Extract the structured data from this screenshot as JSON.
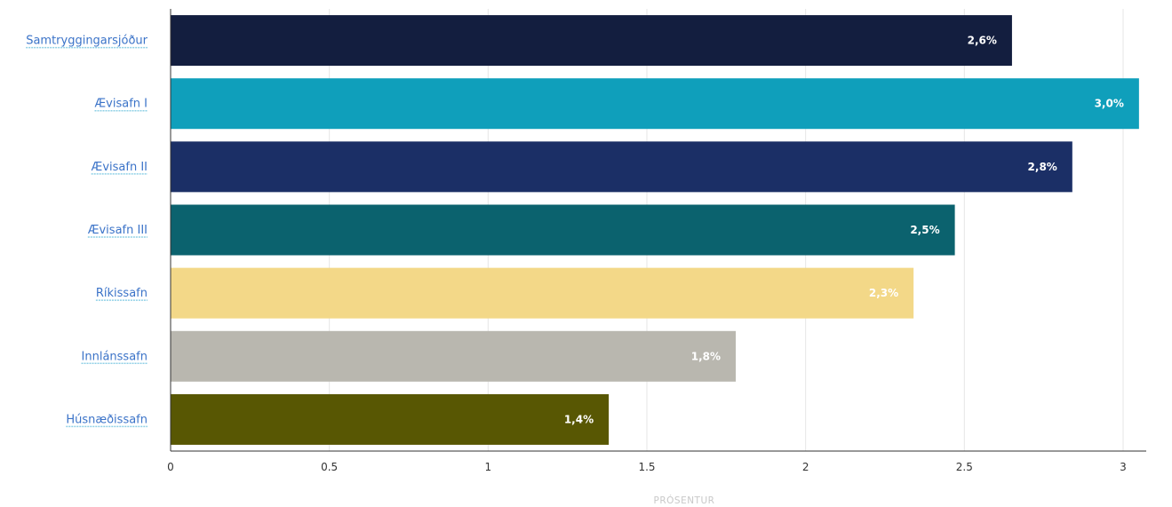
{
  "chart_data": {
    "type": "bar",
    "orientation": "horizontal",
    "categories": [
      "Samtryggingarsjóður",
      "Ævisafn I",
      "Ævisafn II",
      "Ævisafn III",
      "Ríkissafn",
      "Innlánssafn",
      "Húsnæðissafn"
    ],
    "values": [
      2.65,
      3.05,
      2.84,
      2.47,
      2.34,
      1.78,
      1.38
    ],
    "data_labels": [
      "2,6%",
      "3,0%",
      "2,8%",
      "2,5%",
      "2,3%",
      "1,8%",
      "1,4%"
    ],
    "colors": [
      "#131e3f",
      "#0f9fbb",
      "#1b2f66",
      "#0b626e",
      "#f3d888",
      "#b9b7af",
      "#585703"
    ],
    "xlabel": "PRÓSENTUR",
    "ylabel": "",
    "xlim": [
      0,
      3.15
    ],
    "xticks": [
      0,
      0.5,
      1,
      1.5,
      2,
      2.5,
      3
    ],
    "xtick_labels": [
      "0",
      "0.5",
      "1",
      "1.5",
      "2",
      "2.5",
      "3"
    ],
    "grid": true,
    "legend": "none"
  }
}
